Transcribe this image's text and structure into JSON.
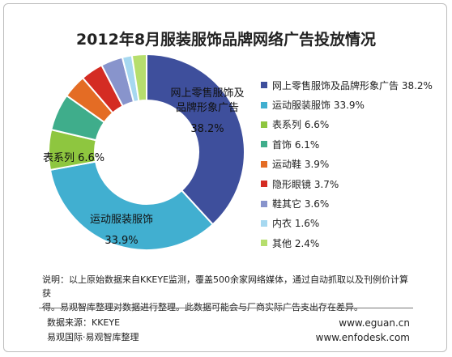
{
  "title": "2012年8月服装服饰品牌网络广告投放情况",
  "chart_data": {
    "type": "pie",
    "donut": true,
    "title": "2012年8月服装服饰品牌网络广告投放情况",
    "categories": [
      "网上零售服饰及品牌形象广告",
      "运动服装服饰",
      "表系列",
      "首饰",
      "运动鞋",
      "隐形眼镜",
      "鞋其它",
      "内衣",
      "其他"
    ],
    "values": [
      38.2,
      33.9,
      6.6,
      6.1,
      3.9,
      3.7,
      3.6,
      1.6,
      2.4
    ],
    "colors": [
      "#3e4f9c",
      "#41afd0",
      "#8ec63f",
      "#3fad8b",
      "#e46c24",
      "#d42c23",
      "#8894cc",
      "#a6d8f0",
      "#b6de6d"
    ],
    "legend": [
      "网上零售服饰及品牌形象广告 38.2%",
      "运动服装服饰 33.9%",
      "表系列 6.6%",
      "首饰 6.1%",
      "运动鞋 3.9%",
      "隐形眼镜 3.7%",
      "鞋其它 3.6%",
      "内衣 1.6%",
      "其他 2.4%"
    ],
    "legend_position": "right",
    "data_labels": {
      "slice1_line1": "网上零售服饰及",
      "slice1_line2": "品牌形象广告",
      "slice1_value": "38.2%",
      "slice2_line1": "运动服装服饰",
      "slice2_value": "33.9%",
      "slice3": "表系列 6.6%"
    }
  },
  "note": {
    "line1": "说明：以上原始数据来自KKEYE监测，覆盖500余家网络媒体，通过自动抓取以及刊例价计算获",
    "line2": "得。易观智库整理对数据进行整理。此数据可能会与厂商实际广告支出存在差异。"
  },
  "footer": {
    "source": "数据来源：KKEYE",
    "org": "易观国际·易观智库整理",
    "url1": "www.eguan.cn",
    "url2": "www.enfodesk.com"
  }
}
